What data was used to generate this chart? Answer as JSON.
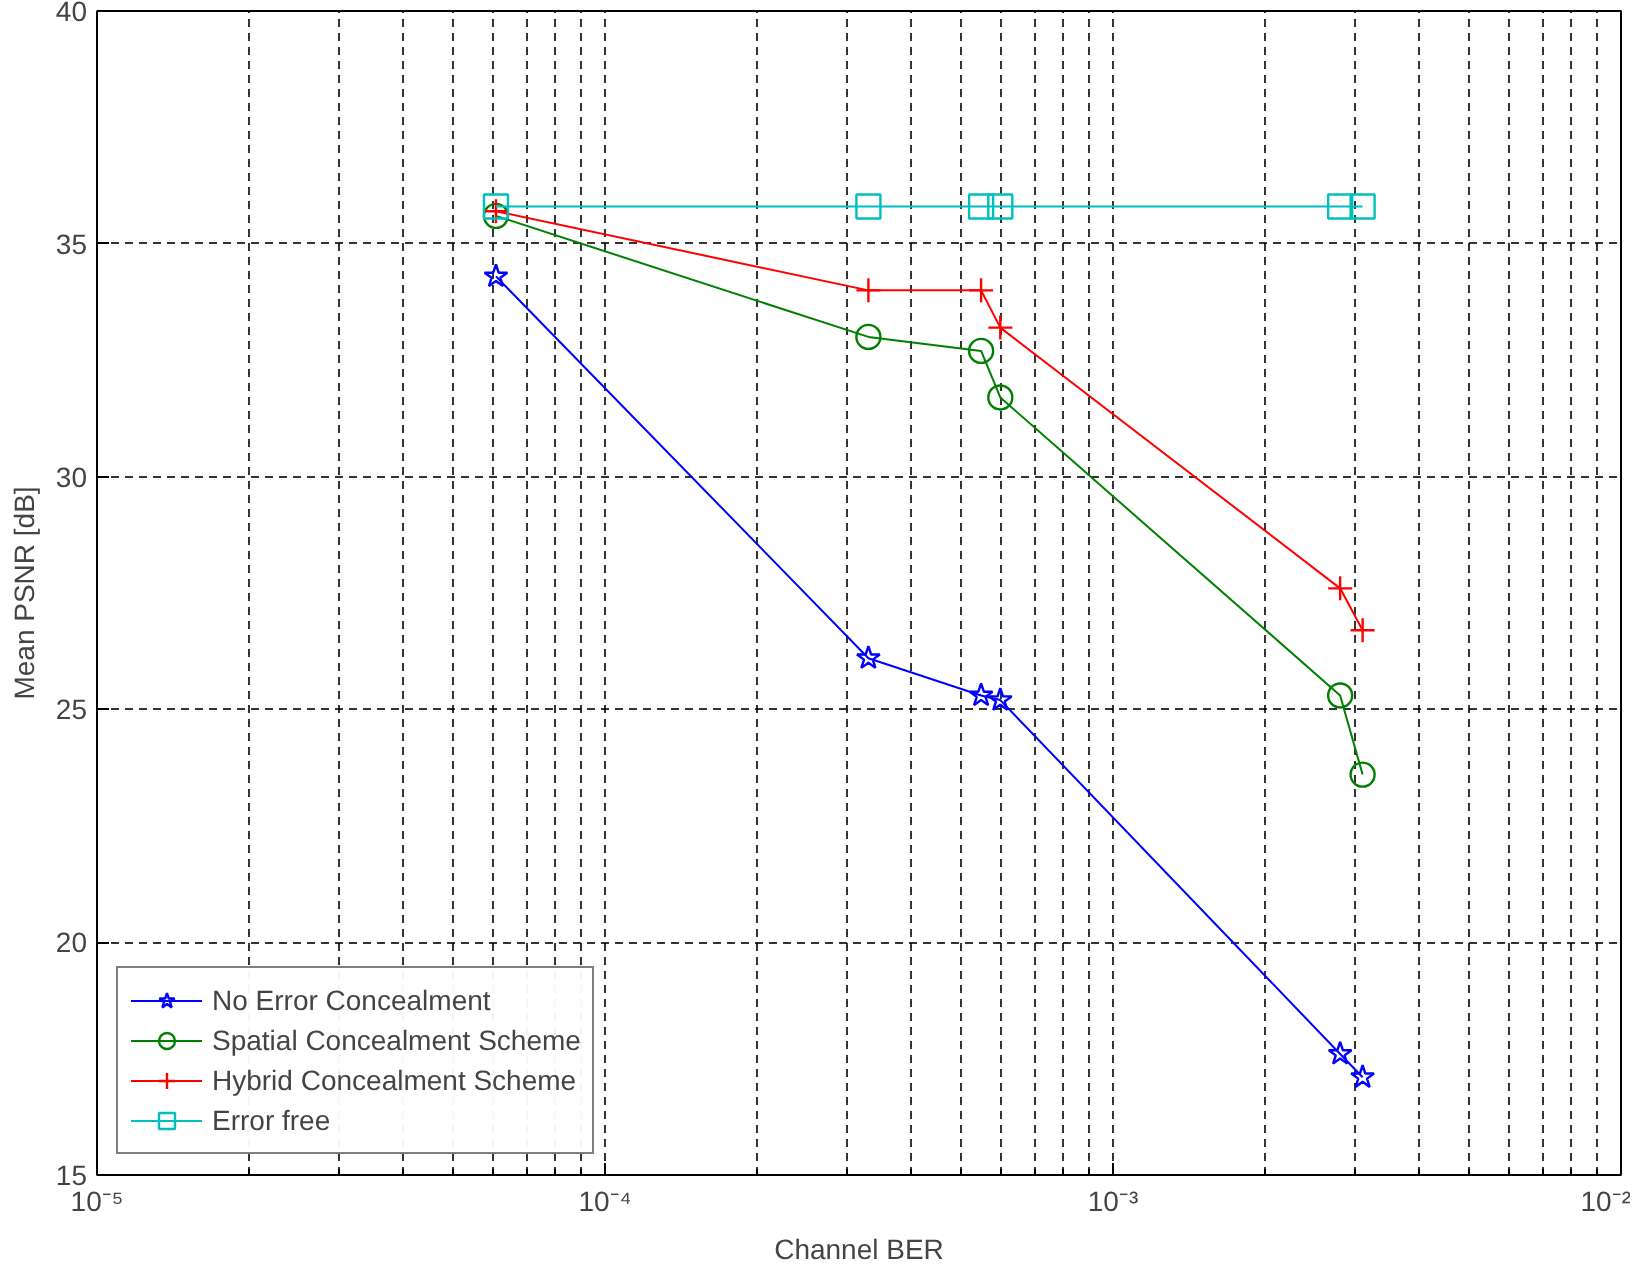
{
  "chart_data": {
    "type": "line",
    "xlabel": "Channel BER",
    "ylabel": "Mean PSNR [dB]",
    "log": "x",
    "grid": true,
    "legend": "bottom left",
    "xlim": [
      1e-05,
      0.01
    ],
    "ylim": [
      15,
      40
    ],
    "xticks": [
      {
        "value": 1e-05,
        "label": "10⁻⁵"
      },
      {
        "value": 0.0001,
        "label": "10⁻⁴"
      },
      {
        "value": 0.001,
        "label": "10⁻³"
      },
      {
        "value": 0.01,
        "label": "10⁻²"
      }
    ],
    "yticks": [
      15,
      20,
      25,
      30,
      35,
      40
    ],
    "x": [
      6.1e-05,
      0.00033,
      0.00055,
      0.0006,
      0.0028,
      0.0031
    ],
    "series": [
      {
        "name": "No Error Concealment",
        "color": "#0000ff",
        "marker": "star",
        "values": [
          34.3,
          26.1,
          25.3,
          25.2,
          17.6,
          17.1
        ]
      },
      {
        "name": "Spatial Concealment Scheme",
        "color": "#008000",
        "marker": "circle",
        "values": [
          35.6,
          33.0,
          32.7,
          31.7,
          25.3,
          23.6
        ]
      },
      {
        "name": "Hybrid Concealment Scheme",
        "color": "#ff0000",
        "marker": "cross",
        "values": [
          35.7,
          34.0,
          34.0,
          33.2,
          27.6,
          26.7
        ]
      },
      {
        "name": "Error free",
        "color": "#00bfbf",
        "marker": "square",
        "values": [
          35.8,
          35.8,
          35.8,
          35.8,
          35.8,
          35.8
        ]
      }
    ]
  }
}
